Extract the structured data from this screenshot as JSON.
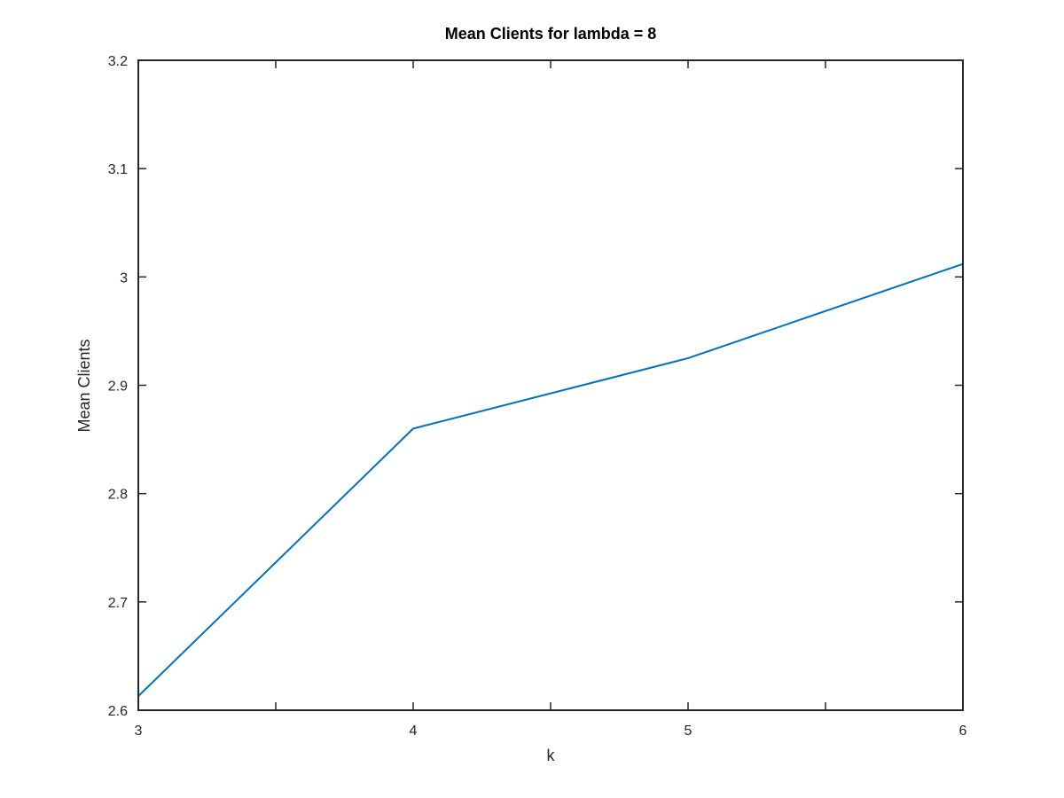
{
  "chart_data": {
    "type": "line",
    "title": "Mean Clients for lambda = 8",
    "xlabel": "k",
    "ylabel": "Mean Clients",
    "xlim": [
      3,
      6
    ],
    "ylim": [
      2.6,
      3.2
    ],
    "xticks": [
      3,
      3.5,
      4,
      4.5,
      5,
      5.5,
      6
    ],
    "xtick_labels": [
      "3",
      "",
      "4",
      "",
      "5",
      "",
      "6"
    ],
    "yticks": [
      2.6,
      2.7,
      2.8,
      2.9,
      3.0,
      3.1,
      3.2
    ],
    "ytick_labels": [
      "2.6",
      "2.7",
      "2.8",
      "2.9",
      "3",
      "3.1",
      "3.2"
    ],
    "grid": false,
    "series": [
      {
        "x": [
          3,
          4,
          5,
          6
        ],
        "y": [
          2.613,
          2.86,
          2.925,
          3.012
        ],
        "color": "#0072BD"
      }
    ]
  }
}
